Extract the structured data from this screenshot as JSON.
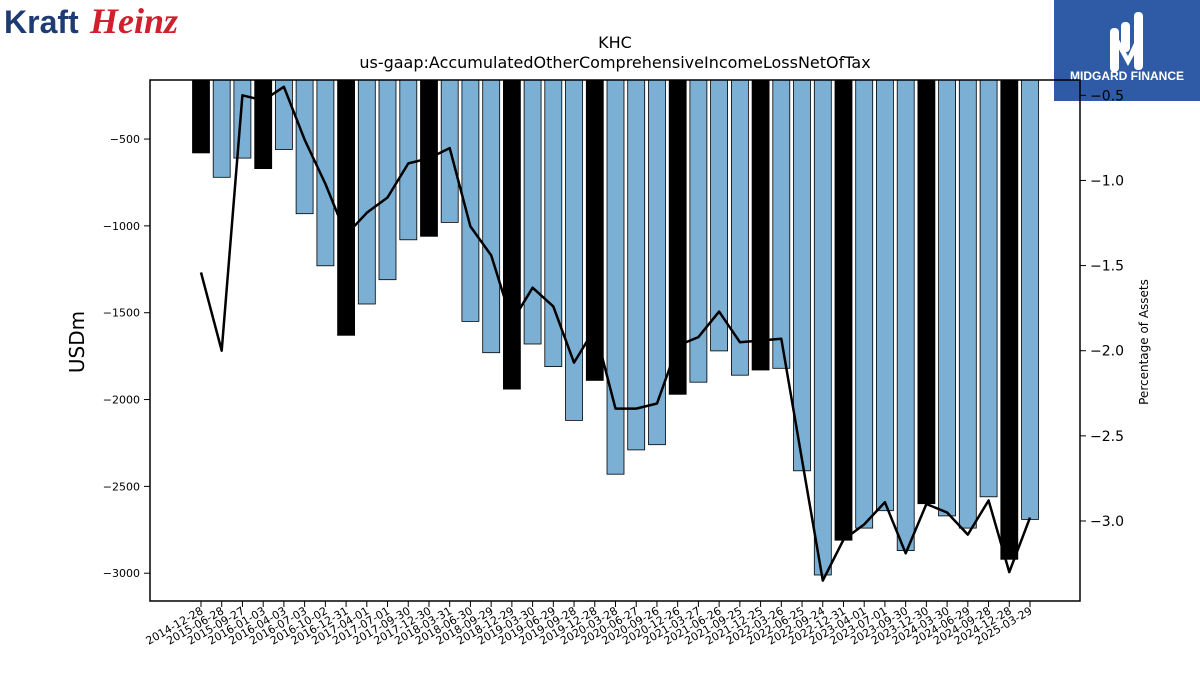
{
  "brand": {
    "company_logo_text": [
      "Kraft",
      "Heinz"
    ],
    "watermark_text": "MIDGARD FINANCE",
    "colors": {
      "kraft": "#1f3b73",
      "heinz": "#d0202e",
      "watermark_bg": "#2e5aa6"
    }
  },
  "chart_data": {
    "type": "bar",
    "title": "KHC",
    "subtitle": "us-gaap:AccumulatedOtherComprehensiveIncomeLossNetOfTax",
    "ylabel": "USDm",
    "y2label": "Percentage of Assets",
    "ylim": [
      -3160,
      -160
    ],
    "y2lim": [
      -3.47,
      -0.41
    ],
    "yticks": [
      -500,
      -1000,
      -1500,
      -2000,
      -2500,
      -3000
    ],
    "y2ticks": [
      -0.5,
      -1.0,
      -1.5,
      -2.0,
      -2.5,
      -3.0
    ],
    "categories": [
      "2014-12-28",
      "2015-06-28",
      "2015-09-27",
      "2016-01-03",
      "2016-04-03",
      "2016-07-03",
      "2016-10-02",
      "2016-12-31",
      "2017-04-01",
      "2017-07-01",
      "2017-09-30",
      "2017-12-30",
      "2018-03-31",
      "2018-06-30",
      "2018-09-29",
      "2018-12-29",
      "2019-03-30",
      "2019-06-29",
      "2019-09-28",
      "2019-12-28",
      "2020-03-28",
      "2020-06-27",
      "2020-09-26",
      "2020-12-26",
      "2021-03-27",
      "2021-06-26",
      "2021-09-25",
      "2021-12-25",
      "2022-03-26",
      "2022-06-25",
      "2022-09-24",
      "2022-12-31",
      "2023-04-01",
      "2023-07-01",
      "2023-09-30",
      "2023-12-30",
      "2024-03-30",
      "2024-06-29",
      "2024-09-28",
      "2024-12-28",
      "2025-03-29"
    ],
    "series": [
      {
        "kind": "bar",
        "values": [
          -580,
          -720,
          -610,
          -670,
          -560,
          -930,
          -1230,
          -1630,
          -1450,
          -1310,
          -1080,
          -1060,
          -980,
          -1550,
          -1730,
          -1940,
          -1680,
          -1810,
          -2120,
          -1890,
          -2430,
          -2290,
          -2260,
          -1970,
          -1900,
          -1720,
          -1860,
          -1830,
          -1820,
          -2410,
          -3010,
          -2810,
          -2740,
          -2640,
          -2870,
          -2600,
          -2670,
          -2740,
          -2560,
          -2920,
          -2690
        ],
        "highlight": [
          true,
          false,
          false,
          true,
          false,
          false,
          false,
          true,
          false,
          false,
          false,
          true,
          false,
          false,
          false,
          true,
          false,
          false,
          false,
          true,
          false,
          false,
          false,
          true,
          false,
          false,
          false,
          true,
          false,
          false,
          false,
          true,
          false,
          false,
          false,
          true,
          false,
          false,
          false,
          true,
          false
        ],
        "color": "#7bafd4",
        "highlight_color": "#000000"
      },
      {
        "kind": "line",
        "axis": "right",
        "values": [
          -1.54,
          -2.0,
          -0.5,
          -0.53,
          -0.45,
          -0.76,
          -1.02,
          -1.32,
          -1.19,
          -1.1,
          -0.9,
          -0.87,
          -0.81,
          -1.27,
          -1.44,
          -1.83,
          -1.63,
          -1.74,
          -2.07,
          -1.87,
          -2.34,
          -2.34,
          -2.31,
          -1.97,
          -1.92,
          -1.77,
          -1.95,
          -1.94,
          -1.93,
          -2.64,
          -3.35,
          -3.11,
          -3.02,
          -2.89,
          -3.19,
          -2.9,
          -2.95,
          -3.08,
          -2.88,
          -3.3,
          -2.98
        ],
        "color": "#000000"
      }
    ]
  }
}
